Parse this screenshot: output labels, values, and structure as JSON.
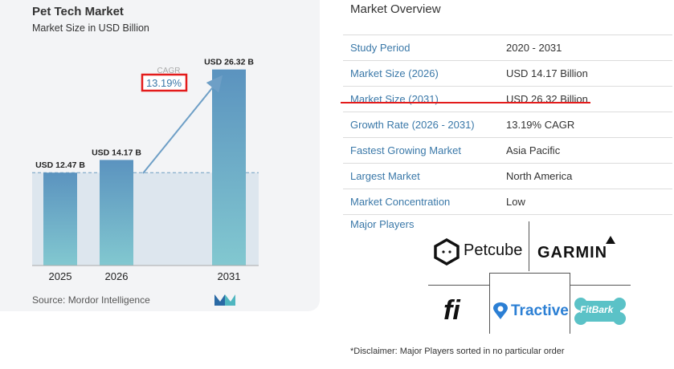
{
  "chart_data": {
    "type": "bar",
    "title": "Pet Tech Market",
    "subtitle": "Market Size in USD Billion",
    "categories": [
      "2025",
      "2026",
      "2031"
    ],
    "values": [
      12.47,
      14.17,
      26.32
    ],
    "value_labels": [
      "USD 12.47 B",
      "USD 14.17 B",
      "USD 26.32 B"
    ],
    "cagr_label": "CAGR",
    "cagr_value": "13.19%",
    "ylim": [
      0,
      28
    ],
    "source": "Source: Mordor Intelligence",
    "colors": {
      "bar_top": "#5b93bf",
      "bar_bottom": "#82c8d0",
      "band": "#dde6ee",
      "arrow": "#6e9fc6",
      "highlight": "#e31b1b"
    }
  },
  "overview": {
    "title": "Market Overview",
    "rows": [
      {
        "label": "Study Period",
        "value": "2020 - 2031"
      },
      {
        "label": "Market Size (2026)",
        "value": "USD 14.17 Billion"
      },
      {
        "label": "Market Size (2031)",
        "value": "USD 26.32 Billion"
      },
      {
        "label": "Growth Rate (2026 - 2031)",
        "value": "13.19% CAGR"
      },
      {
        "label": "Fastest Growing Market",
        "value": "Asia Pacific"
      },
      {
        "label": "Largest Market",
        "value": "North America"
      },
      {
        "label": "Market Concentration",
        "value": "Low"
      }
    ]
  },
  "players": {
    "title": "Major Players",
    "brands": [
      "Petcube",
      "GARMIN",
      "fi",
      "Tractive",
      "FitBark"
    ]
  },
  "disclaimer": "*Disclaimer: Major Players sorted in no particular order"
}
